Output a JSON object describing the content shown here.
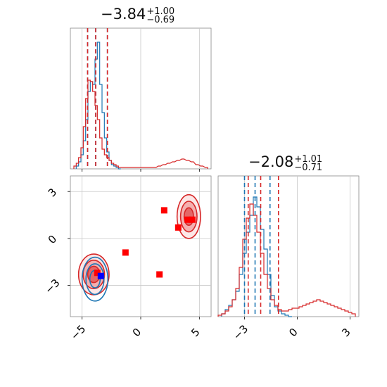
{
  "chart_data": [
    {
      "type": "histogram",
      "panel": "top-left",
      "title_value": "−3.84",
      "title_upper": "+1.00",
      "title_lower": "−0.69",
      "xlim": [
        -6,
        6
      ],
      "series": [
        {
          "color": "#1f77b4",
          "quantiles": [
            -4.53,
            -3.84,
            -2.84
          ],
          "bins_x": [
            -5.4,
            -5.2,
            -5.0,
            -4.8,
            -4.6,
            -4.4,
            -4.2,
            -4.0,
            -3.8,
            -3.6,
            -3.4,
            -3.2,
            -3.0,
            -2.8,
            -2.6,
            -2.4,
            -2.2,
            -2.0,
            -1.8
          ],
          "counts": [
            0.02,
            0.05,
            0.1,
            0.2,
            0.35,
            0.55,
            0.62,
            0.6,
            0.78,
            0.9,
            0.6,
            0.4,
            0.22,
            0.12,
            0.06,
            0.03,
            0.02,
            0.01,
            0.0
          ]
        },
        {
          "color": "#d62728",
          "quantiles": [
            -4.53,
            -3.84,
            -2.84
          ],
          "bins_x": [
            -5.6,
            -5.4,
            -5.2,
            -5.0,
            -4.8,
            -4.6,
            -4.4,
            -4.2,
            -4.0,
            -3.8,
            -3.6,
            -3.4,
            -3.2,
            -3.0,
            -2.8,
            -2.6,
            -2.4,
            -2.2,
            -2.0,
            -1.8,
            -1.6,
            1.2,
            1.6,
            2.0,
            2.4,
            2.8,
            3.2,
            3.6,
            4.0,
            4.4,
            4.8,
            5.2,
            5.6
          ],
          "counts": [
            0.02,
            0.04,
            0.08,
            0.15,
            0.3,
            0.5,
            0.63,
            0.62,
            0.55,
            0.45,
            0.35,
            0.22,
            0.14,
            0.1,
            0.08,
            0.06,
            0.04,
            0.03,
            0.02,
            0.01,
            0.01,
            0.01,
            0.02,
            0.03,
            0.04,
            0.05,
            0.06,
            0.07,
            0.06,
            0.05,
            0.03,
            0.02,
            0.01
          ]
        }
      ],
      "xticks": [
        "−5",
        "0",
        "5"
      ]
    },
    {
      "type": "histogram",
      "panel": "bottom-right",
      "title_value": "−2.08",
      "title_upper": "+1.01",
      "title_lower": "−0.71",
      "xlim": [
        -4.5,
        3.5
      ],
      "series": [
        {
          "color": "#1f77b4",
          "quantiles": [
            -3.0,
            -2.4,
            -1.55
          ],
          "bins_x": [
            -4.2,
            -4.0,
            -3.8,
            -3.6,
            -3.4,
            -3.2,
            -3.0,
            -2.8,
            -2.6,
            -2.4,
            -2.2,
            -2.0,
            -1.8,
            -1.6,
            -1.4,
            -1.2,
            -1.0,
            -0.8,
            -0.6,
            -0.4
          ],
          "counts": [
            0.02,
            0.05,
            0.08,
            0.12,
            0.18,
            0.3,
            0.45,
            0.6,
            0.72,
            0.85,
            0.78,
            0.62,
            0.48,
            0.3,
            0.15,
            0.07,
            0.04,
            0.02,
            0.01,
            0.0
          ]
        },
        {
          "color": "#d62728",
          "quantiles": [
            -2.79,
            -2.08,
            -1.07
          ],
          "bins_x": [
            -4.4,
            -4.2,
            -4.0,
            -3.8,
            -3.6,
            -3.4,
            -3.2,
            -3.0,
            -2.8,
            -2.6,
            -2.4,
            -2.2,
            -2.0,
            -1.8,
            -1.6,
            -1.4,
            -1.2,
            -1.0,
            -0.8,
            -0.6,
            -0.4,
            -0.2,
            0.0,
            0.2,
            0.4,
            0.6,
            0.8,
            1.0,
            1.2,
            1.4,
            1.6,
            1.8,
            2.0,
            2.2,
            2.4,
            2.6,
            2.8,
            3.0,
            3.2
          ],
          "counts": [
            0.01,
            0.02,
            0.04,
            0.07,
            0.12,
            0.2,
            0.35,
            0.55,
            0.7,
            0.8,
            0.72,
            0.6,
            0.45,
            0.3,
            0.2,
            0.12,
            0.08,
            0.05,
            0.04,
            0.04,
            0.05,
            0.06,
            0.06,
            0.07,
            0.08,
            0.09,
            0.1,
            0.11,
            0.12,
            0.11,
            0.1,
            0.09,
            0.08,
            0.07,
            0.06,
            0.05,
            0.04,
            0.03,
            0.02
          ]
        }
      ],
      "xticks": [
        "−3",
        "0",
        "3"
      ]
    },
    {
      "type": "scatter",
      "panel": "bottom-left",
      "xlim": [
        -6,
        6
      ],
      "ylim": [
        -5,
        4
      ],
      "xticks": [
        "−5",
        "0",
        "5"
      ],
      "yticks": [
        "3",
        "0",
        "−3"
      ],
      "grid": true,
      "red_contours": [
        {
          "cx": -4.0,
          "cy": -2.3,
          "rx": 1.3,
          "ry": 1.3
        },
        {
          "cx": 4.1,
          "cy": 1.4,
          "rx": 1.0,
          "ry": 1.4
        }
      ],
      "blue_contours": [
        {
          "cx": -3.9,
          "cy": -2.6,
          "rx": 1.1,
          "ry": 1.4
        }
      ],
      "red_markers": [
        {
          "x": 2.0,
          "y": 1.8
        },
        {
          "x": -1.3,
          "y": -0.9
        },
        {
          "x": 1.6,
          "y": -2.3
        },
        {
          "x": 3.2,
          "y": 0.7
        },
        {
          "x": 4.0,
          "y": 1.2
        },
        {
          "x": 4.4,
          "y": 1.2
        },
        {
          "x": -3.7,
          "y": -2.2
        }
      ],
      "blue_markers": [
        {
          "x": -3.4,
          "y": -2.4
        }
      ]
    }
  ]
}
